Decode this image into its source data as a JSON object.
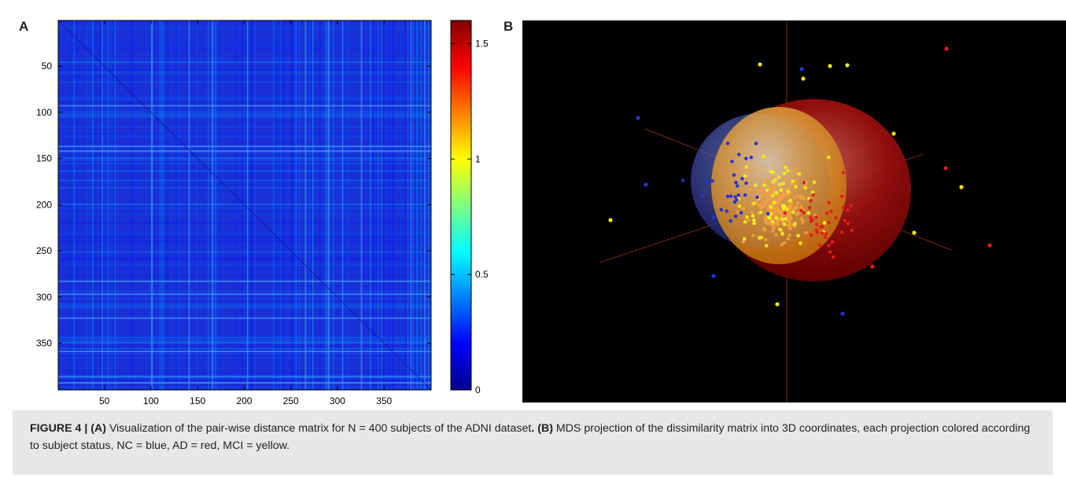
{
  "panel_a": {
    "letter": "A",
    "y_ticks": [
      "50",
      "100",
      "150",
      "200",
      "250",
      "300",
      "350"
    ],
    "x_ticks": [
      "50",
      "100",
      "150",
      "200",
      "250",
      "300",
      "350"
    ],
    "colorbar_ticks": [
      "1.5",
      "1",
      "0.5",
      "0"
    ]
  },
  "panel_b": {
    "letter": "B"
  },
  "chart_data": [
    {
      "type": "heatmap",
      "title": "",
      "xlabel": "",
      "ylabel": "",
      "xlim": [
        1,
        400
      ],
      "ylim": [
        1,
        400
      ],
      "x_ticks": [
        50,
        100,
        150,
        200,
        250,
        300,
        350
      ],
      "y_ticks": [
        50,
        100,
        150,
        200,
        250,
        300,
        350
      ],
      "colorbar": {
        "min": 0,
        "max": 1.6,
        "ticks": [
          0,
          0.5,
          1,
          1.5
        ],
        "colormap": "jet"
      },
      "rows": 400,
      "cols": 400
    },
    {
      "type": "scatter",
      "title": "",
      "dimensions": 3,
      "series": [
        {
          "name": "NC",
          "color": "#2433d9"
        },
        {
          "name": "AD",
          "color": "#e01e1e"
        },
        {
          "name": "MCI",
          "color": "#f2e81e"
        }
      ]
    }
  ],
  "caption": {
    "label": "FIGURE 4 | ",
    "part_a_label": "(A)",
    "part_a_text": " Visualization of the pair-wise distance matrix for N = 400 subjects of the ADNI dataset",
    "dot_bold": ".",
    "part_b_label": " (B)",
    "part_b_text": " MDS projection of the dissimilarity matrix into 3D coordinates, each projection colored according to subject status, NC = blue, AD = red, MCI = yellow."
  },
  "colors": {
    "nc": "#2433d9",
    "ad": "#e01e1e",
    "mci": "#f2e81e",
    "caption_bg": "#e7e7e8"
  }
}
